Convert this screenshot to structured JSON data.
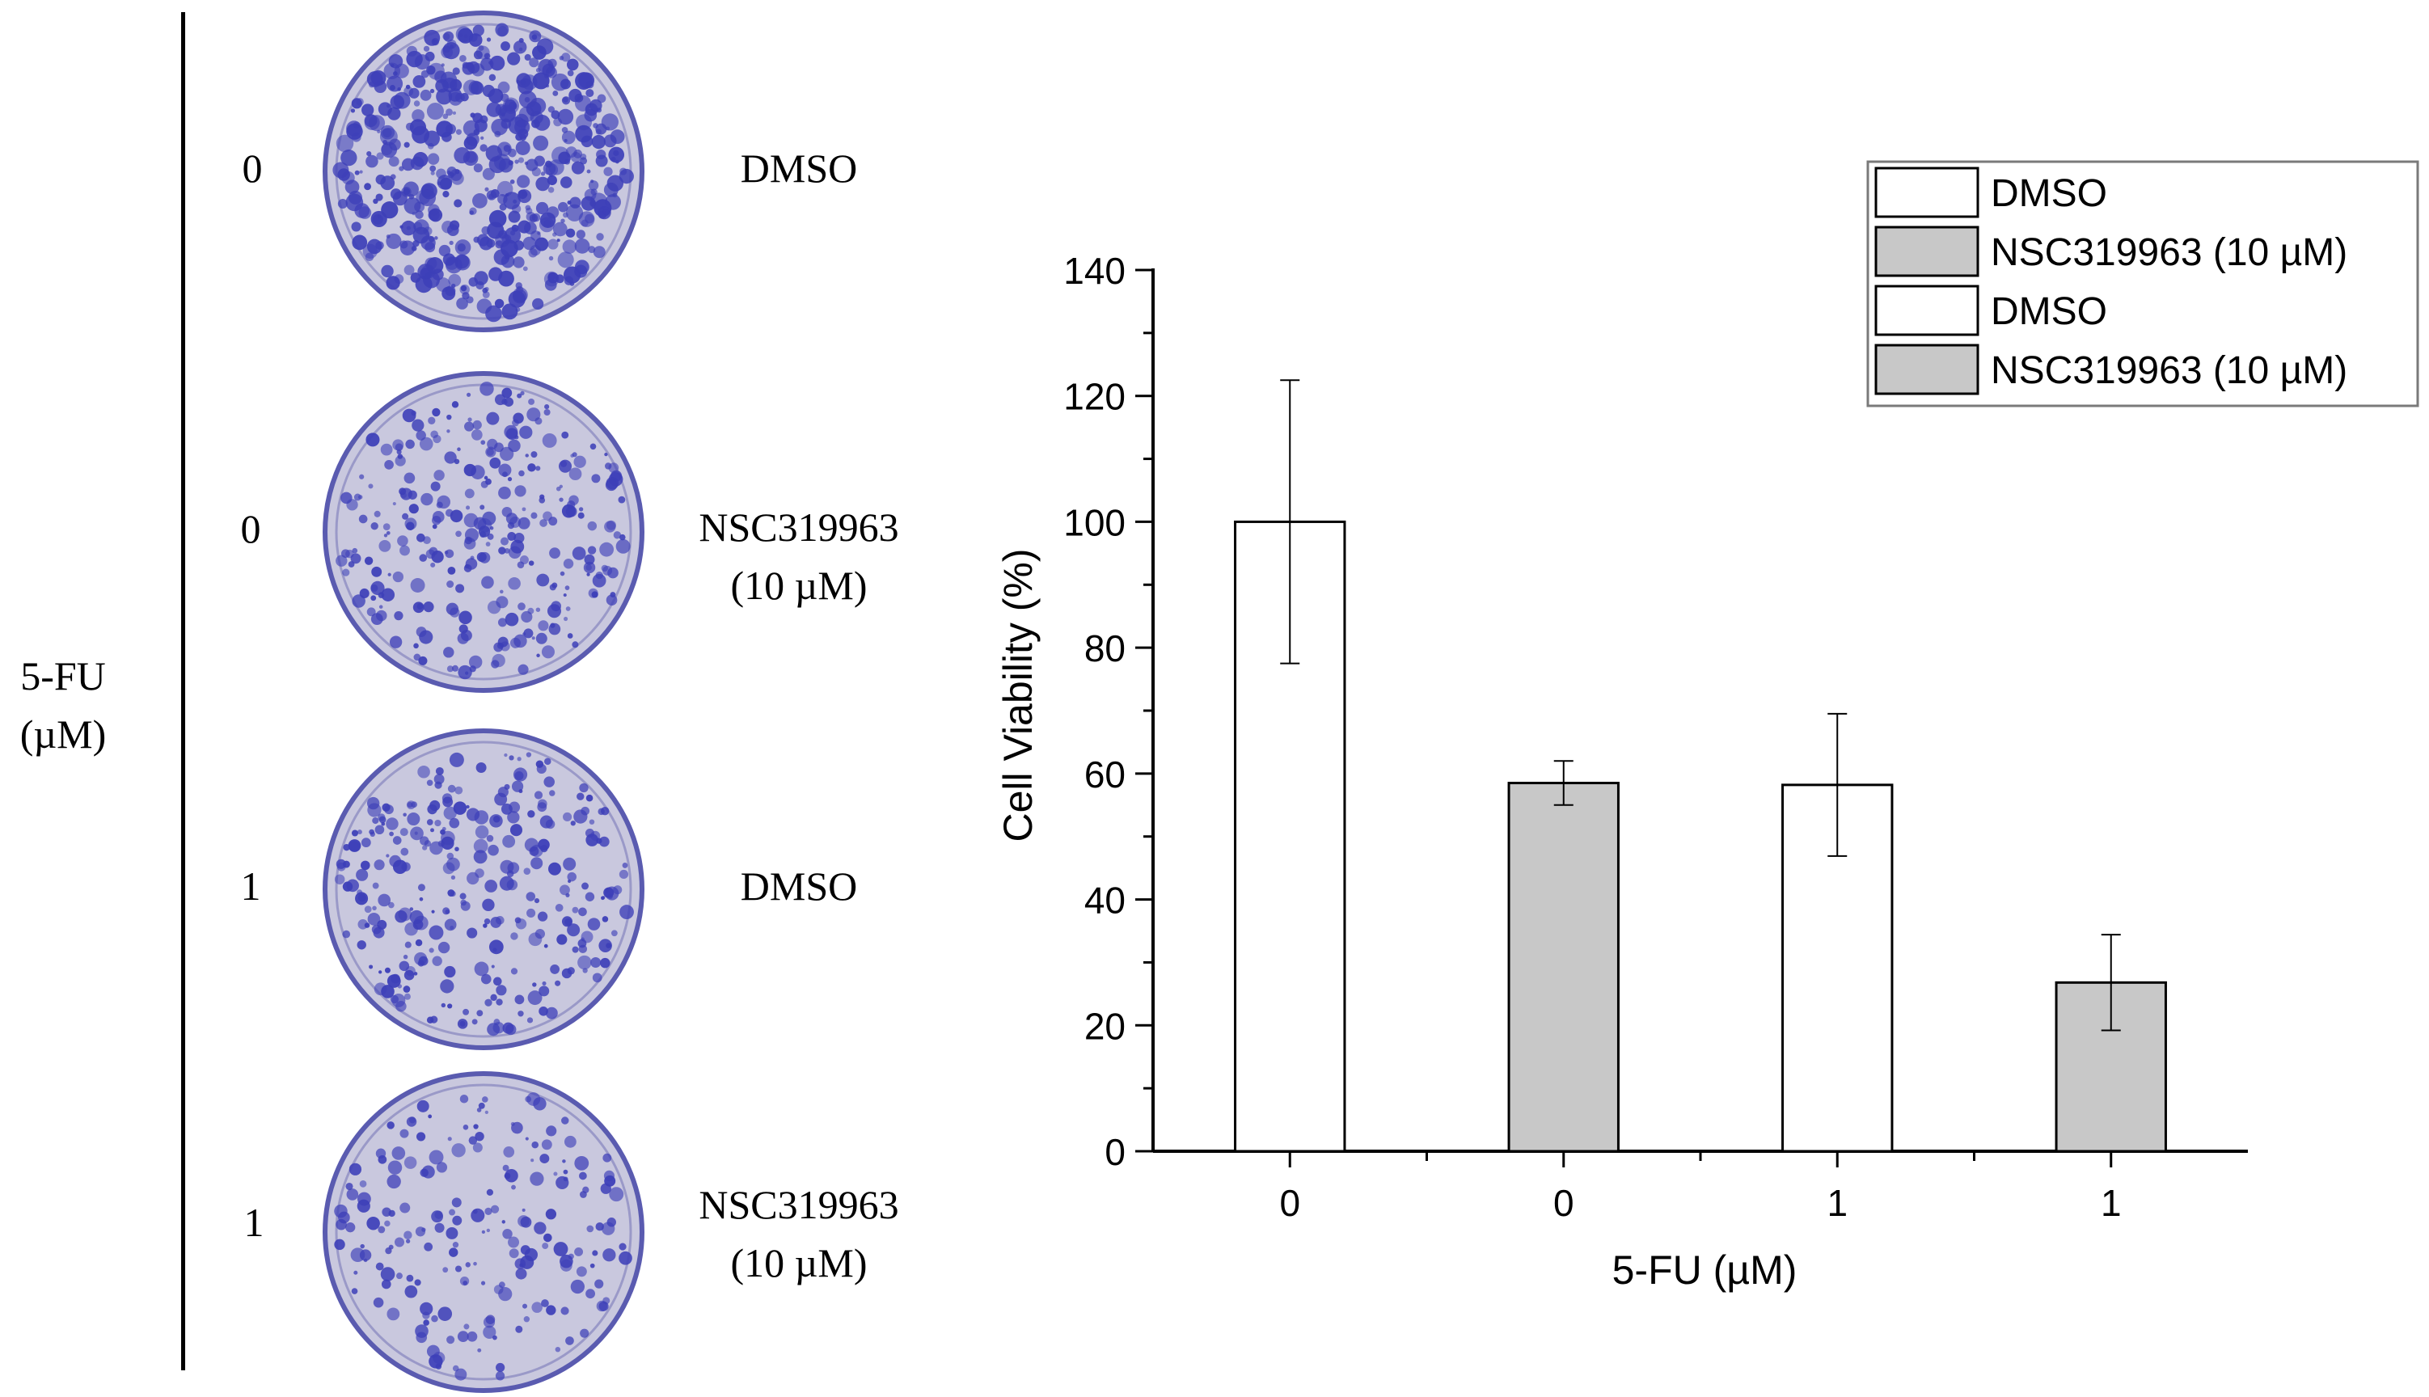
{
  "panel_left": {
    "axis_label": [
      "5-FU",
      "(µM)"
    ],
    "rows": [
      {
        "dose": "0",
        "treatment": [
          "DMSO"
        ],
        "stain": "dense"
      },
      {
        "dose": "0",
        "treatment": [
          "NSC319963",
          "(10 µM)"
        ],
        "stain": "medium"
      },
      {
        "dose": "1",
        "treatment": [
          "DMSO"
        ],
        "stain": "medium"
      },
      {
        "dose": "1",
        "treatment": [
          "NSC319963",
          "(10 µM)"
        ],
        "stain": "sparse"
      }
    ],
    "colors": {
      "colony": "#3d3fb8",
      "plate_bg": "#c9c8de",
      "plate_edge": "#5a5bb0"
    }
  },
  "chart_data": {
    "type": "bar",
    "categories": [
      "0",
      "0",
      "1",
      "1"
    ],
    "values": [
      100,
      58.5,
      58.2,
      26.8
    ],
    "errors": [
      22.5,
      3.5,
      11.3,
      7.6
    ],
    "fills": [
      "#ffffff",
      "#c8c8c8",
      "#ffffff",
      "#c8c8c8"
    ],
    "xlabel": "5-FU (µM)",
    "ylabel": "Cell Viability (%)",
    "ylim": [
      0,
      140
    ],
    "yticks": [
      0,
      20,
      40,
      60,
      80,
      100,
      120,
      140
    ],
    "grid": false,
    "legend": {
      "position": "top-right",
      "entries": [
        {
          "label": "DMSO",
          "fill": "#ffffff"
        },
        {
          "label": "NSC319963 (10 µM)",
          "fill": "#c8c8c8"
        },
        {
          "label": "DMSO",
          "fill": "#ffffff"
        },
        {
          "label": "NSC319963 (10 µM)",
          "fill": "#c8c8c8"
        }
      ]
    }
  }
}
